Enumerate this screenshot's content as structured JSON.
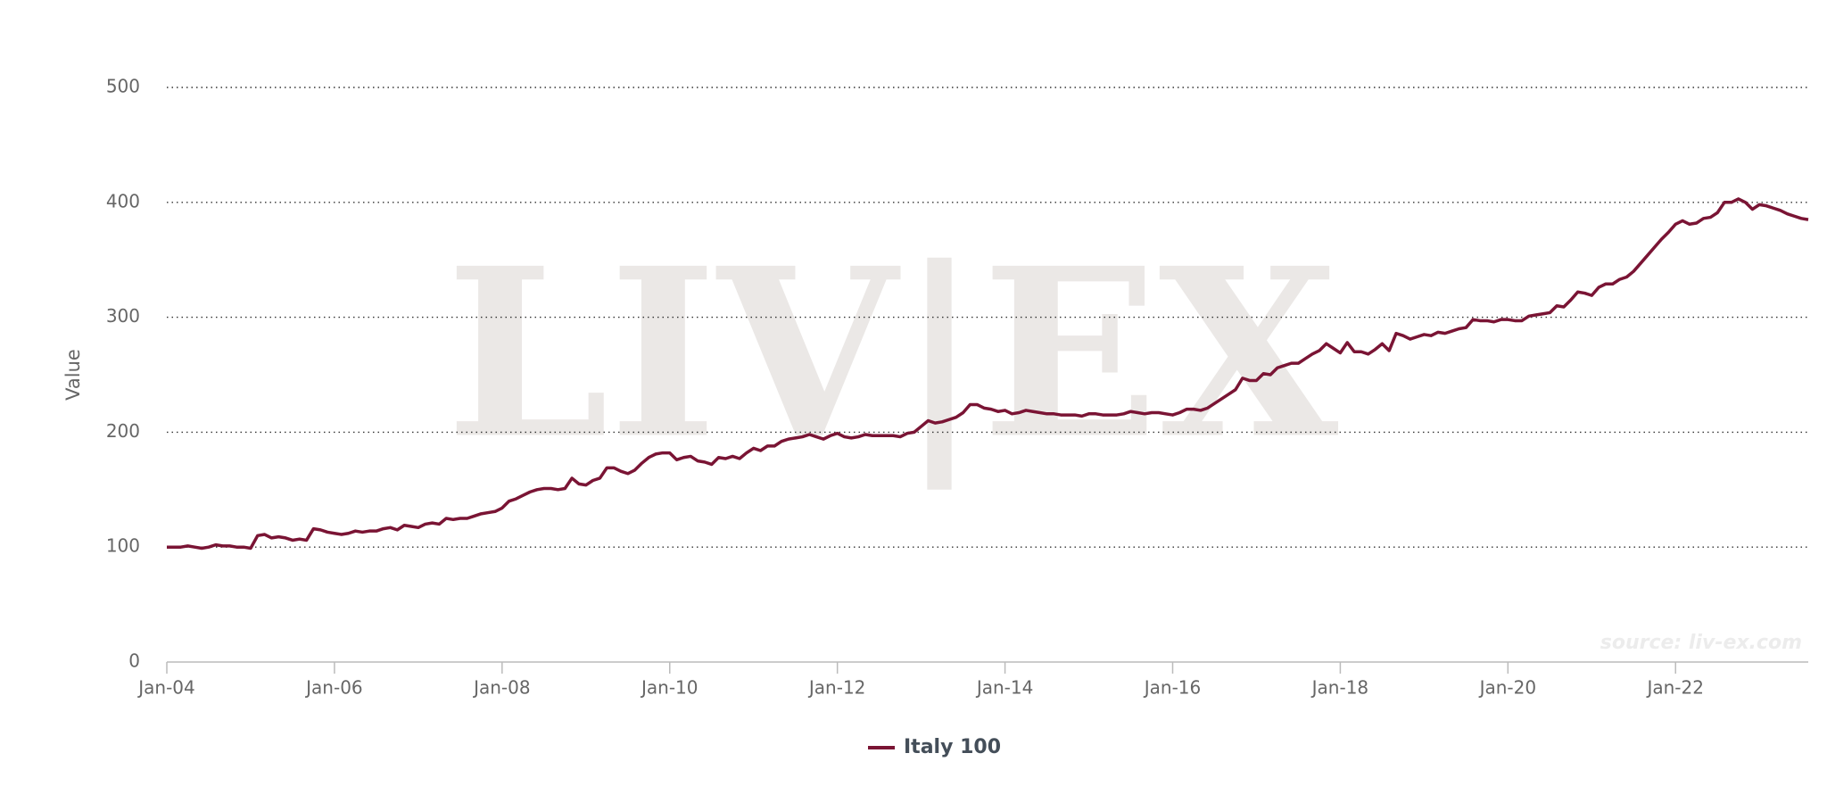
{
  "chart_data": {
    "type": "line",
    "watermark": "LIV|EX",
    "source": "source: liv-ex.com",
    "y_label": "Value",
    "grid": true,
    "legend": "bottom",
    "xlim": [
      "2004-01",
      "2023-08"
    ],
    "ylim": [
      0,
      500
    ],
    "yticks": [
      0,
      100,
      200,
      300,
      400,
      500
    ],
    "xticks": [
      {
        "value": "2004-01",
        "label": "Jan-04"
      },
      {
        "value": "2006-01",
        "label": "Jan-06"
      },
      {
        "value": "2008-01",
        "label": "Jan-08"
      },
      {
        "value": "2010-01",
        "label": "Jan-10"
      },
      {
        "value": "2012-01",
        "label": "Jan-12"
      },
      {
        "value": "2014-01",
        "label": "Jan-14"
      },
      {
        "value": "2016-01",
        "label": "Jan-16"
      },
      {
        "value": "2018-01",
        "label": "Jan-18"
      },
      {
        "value": "2020-01",
        "label": "Jan-20"
      },
      {
        "value": "2022-01",
        "label": "Jan-22"
      }
    ],
    "x": [
      "2004-01",
      "2004-02",
      "2004-03",
      "2004-04",
      "2004-05",
      "2004-06",
      "2004-07",
      "2004-08",
      "2004-09",
      "2004-10",
      "2004-11",
      "2004-12",
      "2005-01",
      "2005-02",
      "2005-03",
      "2005-04",
      "2005-05",
      "2005-06",
      "2005-07",
      "2005-08",
      "2005-09",
      "2005-10",
      "2005-11",
      "2005-12",
      "2006-01",
      "2006-02",
      "2006-03",
      "2006-04",
      "2006-05",
      "2006-06",
      "2006-07",
      "2006-08",
      "2006-09",
      "2006-10",
      "2006-11",
      "2006-12",
      "2007-01",
      "2007-02",
      "2007-03",
      "2007-04",
      "2007-05",
      "2007-06",
      "2007-07",
      "2007-08",
      "2007-09",
      "2007-10",
      "2007-11",
      "2007-12",
      "2008-01",
      "2008-02",
      "2008-03",
      "2008-04",
      "2008-05",
      "2008-06",
      "2008-07",
      "2008-08",
      "2008-09",
      "2008-10",
      "2008-11",
      "2008-12",
      "2009-01",
      "2009-02",
      "2009-03",
      "2009-04",
      "2009-05",
      "2009-06",
      "2009-07",
      "2009-08",
      "2009-09",
      "2009-10",
      "2009-11",
      "2009-12",
      "2010-01",
      "2010-02",
      "2010-03",
      "2010-04",
      "2010-05",
      "2010-06",
      "2010-07",
      "2010-08",
      "2010-09",
      "2010-10",
      "2010-11",
      "2010-12",
      "2011-01",
      "2011-02",
      "2011-03",
      "2011-04",
      "2011-05",
      "2011-06",
      "2011-07",
      "2011-08",
      "2011-09",
      "2011-10",
      "2011-11",
      "2011-12",
      "2012-01",
      "2012-02",
      "2012-03",
      "2012-04",
      "2012-05",
      "2012-06",
      "2012-07",
      "2012-08",
      "2012-09",
      "2012-10",
      "2012-11",
      "2012-12",
      "2013-01",
      "2013-02",
      "2013-03",
      "2013-04",
      "2013-05",
      "2013-06",
      "2013-07",
      "2013-08",
      "2013-09",
      "2013-10",
      "2013-11",
      "2013-12",
      "2014-01",
      "2014-02",
      "2014-03",
      "2014-04",
      "2014-05",
      "2014-06",
      "2014-07",
      "2014-08",
      "2014-09",
      "2014-10",
      "2014-11",
      "2014-12",
      "2015-01",
      "2015-02",
      "2015-03",
      "2015-04",
      "2015-05",
      "2015-06",
      "2015-07",
      "2015-08",
      "2015-09",
      "2015-10",
      "2015-11",
      "2015-12",
      "2016-01",
      "2016-02",
      "2016-03",
      "2016-04",
      "2016-05",
      "2016-06",
      "2016-07",
      "2016-08",
      "2016-09",
      "2016-10",
      "2016-11",
      "2016-12",
      "2017-01",
      "2017-02",
      "2017-03",
      "2017-04",
      "2017-05",
      "2017-06",
      "2017-07",
      "2017-08",
      "2017-09",
      "2017-10",
      "2017-11",
      "2017-12",
      "2018-01",
      "2018-02",
      "2018-03",
      "2018-04",
      "2018-05",
      "2018-06",
      "2018-07",
      "2018-08",
      "2018-09",
      "2018-10",
      "2018-11",
      "2018-12",
      "2019-01",
      "2019-02",
      "2019-03",
      "2019-04",
      "2019-05",
      "2019-06",
      "2019-07",
      "2019-08",
      "2019-09",
      "2019-10",
      "2019-11",
      "2019-12",
      "2020-01",
      "2020-02",
      "2020-03",
      "2020-04",
      "2020-05",
      "2020-06",
      "2020-07",
      "2020-08",
      "2020-09",
      "2020-10",
      "2020-11",
      "2020-12",
      "2021-01",
      "2021-02",
      "2021-03",
      "2021-04",
      "2021-05",
      "2021-06",
      "2021-07",
      "2021-08",
      "2021-09",
      "2021-10",
      "2021-11",
      "2021-12",
      "2022-01",
      "2022-02",
      "2022-03",
      "2022-04",
      "2022-05",
      "2022-06",
      "2022-07",
      "2022-08",
      "2022-09",
      "2022-10",
      "2022-11",
      "2022-12",
      "2023-01",
      "2023-02",
      "2023-03",
      "2023-04",
      "2023-05",
      "2023-06",
      "2023-07",
      "2023-08"
    ],
    "series": [
      {
        "name": "Italy 100",
        "color": "#7a1434",
        "values": [
          100,
          100,
          100,
          101,
          100,
          99,
          100,
          102,
          101,
          101,
          100,
          100,
          99,
          110,
          111,
          108,
          109,
          108,
          106,
          107,
          106,
          116,
          115,
          113,
          112,
          111,
          112,
          114,
          113,
          114,
          114,
          116,
          117,
          115,
          119,
          118,
          117,
          120,
          121,
          120,
          125,
          124,
          125,
          125,
          127,
          129,
          130,
          131,
          134,
          140,
          142,
          145,
          148,
          150,
          151,
          151,
          150,
          151,
          160,
          155,
          154,
          158,
          160,
          169,
          169,
          166,
          164,
          167,
          173,
          178,
          181,
          182,
          182,
          176,
          178,
          179,
          175,
          174,
          172,
          178,
          177,
          179,
          177,
          182,
          186,
          184,
          188,
          188,
          192,
          194,
          195,
          196,
          198,
          196,
          194,
          197,
          199,
          196,
          195,
          196,
          198,
          197,
          197,
          197,
          197,
          196,
          199,
          200,
          205,
          210,
          208,
          209,
          211,
          213,
          217,
          224,
          224,
          221,
          220,
          218,
          219,
          216,
          217,
          219,
          218,
          217,
          216,
          216,
          215,
          215,
          215,
          214,
          216,
          216,
          215,
          215,
          215,
          216,
          218,
          217,
          216,
          217,
          217,
          216,
          215,
          217,
          220,
          220,
          219,
          221,
          225,
          229,
          233,
          237,
          247,
          245,
          245,
          251,
          250,
          256,
          258,
          260,
          260,
          264,
          268,
          271,
          277,
          273,
          269,
          278,
          270,
          270,
          268,
          272,
          277,
          271,
          286,
          284,
          281,
          283,
          285,
          284,
          287,
          286,
          288,
          290,
          291,
          298,
          297,
          297,
          296,
          298,
          298,
          297,
          297,
          301,
          302,
          303,
          304,
          310,
          309,
          315,
          322,
          321,
          319,
          326,
          329,
          329,
          333,
          335,
          340,
          347,
          354,
          361,
          368,
          374,
          381,
          384,
          381,
          382,
          386,
          387,
          391,
          400,
          400,
          403,
          400,
          394,
          398,
          397,
          395,
          393,
          390,
          388,
          386,
          385
        ]
      }
    ]
  }
}
